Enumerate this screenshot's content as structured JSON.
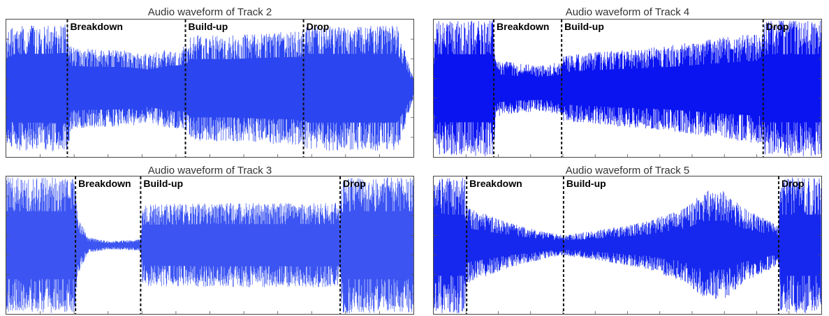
{
  "chart_data": [
    {
      "type": "line",
      "title": "Audio waveform of Track 2",
      "xlabel": "",
      "ylabel": "",
      "color": "#2b45f0",
      "sections": [
        {
          "label": "Breakdown",
          "at": 0.15
        },
        {
          "label": "Build-up",
          "at": 0.44
        },
        {
          "label": "Drop",
          "at": 0.73
        }
      ],
      "envelope": {
        "x": [
          0,
          0.02,
          0.1,
          0.15,
          0.16,
          0.2,
          0.3,
          0.35,
          0.4,
          0.44,
          0.45,
          0.55,
          0.65,
          0.73,
          0.74,
          0.85,
          0.96,
          1.0
        ],
        "amplitude": [
          0.8,
          0.92,
          0.92,
          0.95,
          0.6,
          0.58,
          0.56,
          0.5,
          0.6,
          0.62,
          0.78,
          0.78,
          0.82,
          0.84,
          0.92,
          0.92,
          0.92,
          0.15
        ]
      },
      "core": 0.55
    },
    {
      "type": "line",
      "title": "Audio waveform of Track 4",
      "xlabel": "",
      "ylabel": "",
      "color": "#0a14f0",
      "sections": [
        {
          "label": "Breakdown",
          "at": 0.155
        },
        {
          "label": "Build-up",
          "at": 0.33
        },
        {
          "label": "Drop",
          "at": 0.85
        }
      ],
      "envelope": {
        "x": [
          0,
          0.01,
          0.15,
          0.155,
          0.16,
          0.22,
          0.28,
          0.33,
          0.335,
          0.45,
          0.6,
          0.75,
          0.85,
          0.855,
          0.95,
          1.0
        ],
        "amplitude": [
          0.7,
          1.0,
          1.0,
          1.0,
          0.42,
          0.36,
          0.34,
          0.4,
          0.48,
          0.55,
          0.62,
          0.75,
          0.82,
          1.0,
          1.0,
          1.0
        ]
      },
      "core": 0.5
    },
    {
      "type": "line",
      "title": "Audio waveform of Track 3",
      "xlabel": "",
      "ylabel": "",
      "color": "#3c55f2",
      "sections": [
        {
          "label": "Breakdown",
          "at": 0.17
        },
        {
          "label": "Build-up",
          "at": 0.33
        },
        {
          "label": "Drop",
          "at": 0.82
        }
      ],
      "envelope": {
        "x": [
          0,
          0.17,
          0.175,
          0.2,
          0.25,
          0.32,
          0.33,
          0.335,
          0.5,
          0.7,
          0.82,
          0.825,
          1.0
        ],
        "amplitude": [
          1.0,
          1.0,
          0.45,
          0.12,
          0.06,
          0.08,
          0.1,
          0.6,
          0.62,
          0.62,
          0.62,
          1.0,
          1.0
        ]
      },
      "core": 0.5
    },
    {
      "type": "line",
      "title": "Audio waveform of Track 5",
      "xlabel": "",
      "ylabel": "",
      "color": "#1628ee",
      "sections": [
        {
          "label": "Breakdown",
          "at": 0.085
        },
        {
          "label": "Build-up",
          "at": 0.335
        },
        {
          "label": "Drop",
          "at": 0.89
        }
      ],
      "envelope": {
        "x": [
          0,
          0.08,
          0.085,
          0.09,
          0.2,
          0.3,
          0.335,
          0.4,
          0.55,
          0.65,
          0.7,
          0.75,
          0.8,
          0.87,
          0.89,
          0.895,
          1.0
        ],
        "amplitude": [
          1.0,
          1.0,
          0.6,
          0.55,
          0.32,
          0.18,
          0.15,
          0.2,
          0.35,
          0.55,
          0.8,
          0.8,
          0.55,
          0.35,
          0.3,
          1.0,
          1.0
        ]
      },
      "core": 0.45
    }
  ]
}
